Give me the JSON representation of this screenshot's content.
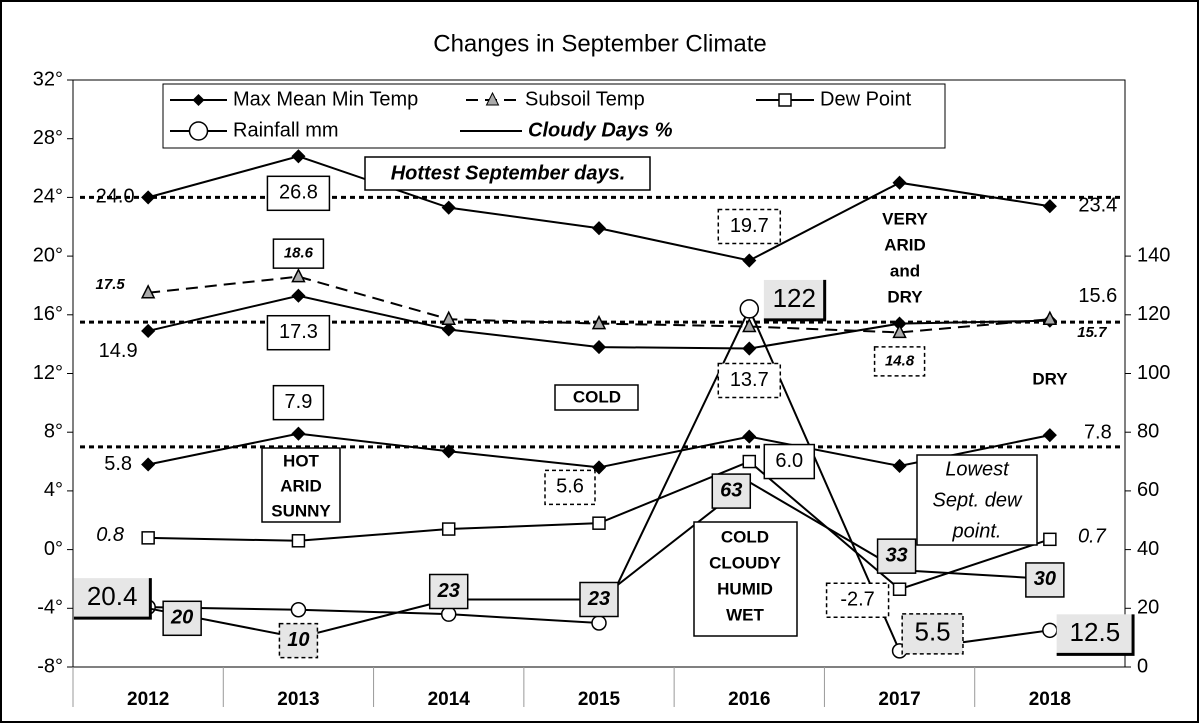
{
  "chart_data": {
    "type": "line",
    "title": "Changes in September Climate",
    "categories": [
      "2012",
      "2013",
      "2014",
      "2015",
      "2016",
      "2017",
      "2018"
    ],
    "ylim": [
      -8,
      32
    ],
    "yticks": [
      {
        "value": -8,
        "label": "-8°"
      },
      {
        "value": -4,
        "label": "-4°"
      },
      {
        "value": 0,
        "label": "0°"
      },
      {
        "value": 4,
        "label": "4°"
      },
      {
        "value": 8,
        "label": "8°"
      },
      {
        "value": 12,
        "label": "12°"
      },
      {
        "value": 16,
        "label": "16°"
      },
      {
        "value": 20,
        "label": "20°"
      },
      {
        "value": 24,
        "label": "24°"
      },
      {
        "value": 28,
        "label": "28°"
      },
      {
        "value": 32,
        "label": "32°"
      }
    ],
    "y2lim": [
      0,
      200
    ],
    "y2ticks": [
      0,
      20,
      40,
      60,
      80,
      100,
      120,
      140
    ],
    "reference_lines": [
      24,
      15.5,
      7
    ],
    "series": [
      {
        "name": "Max Mean Min Temp",
        "color": "#000000",
        "marker": "diamond",
        "values": [
          24.0,
          26.8,
          23.3,
          21.9,
          19.7,
          25.0,
          23.4
        ],
        "value_labels": [
          "24.0",
          "26.8",
          null,
          null,
          "19.7",
          null,
          "23.4"
        ]
      },
      {
        "color": "#000000",
        "marker": "diamond",
        "values": [
          14.9,
          17.3,
          15.0,
          13.8,
          13.7,
          15.4,
          15.6
        ],
        "value_labels": [
          "14.9",
          "17.3",
          null,
          null,
          "13.7",
          null,
          "15.6"
        ]
      },
      {
        "color": "#000000",
        "marker": "diamond",
        "values": [
          5.8,
          7.9,
          6.7,
          5.6,
          7.7,
          5.7,
          7.8
        ],
        "value_labels": [
          "5.8",
          "7.9",
          null,
          "5.6",
          null,
          null,
          "7.8"
        ]
      },
      {
        "name": "Subsoil Temp",
        "color": "#000000",
        "marker": "triangle",
        "line_style": "dashed",
        "values": [
          17.5,
          18.6,
          15.7,
          15.4,
          15.2,
          14.8,
          15.7
        ],
        "value_labels": [
          "17.5",
          "18.6",
          null,
          null,
          null,
          "14.8",
          "15.7"
        ]
      },
      {
        "name": "Dew Point",
        "color": "#000000",
        "marker": "square",
        "values": [
          0.8,
          0.6,
          1.4,
          1.8,
          6.0,
          -2.7,
          0.7
        ],
        "value_labels": [
          "0.8",
          null,
          null,
          null,
          "6.0",
          "-2.7",
          "0.7"
        ]
      },
      {
        "name": "Rainfall mm",
        "color": "#000000",
        "marker": "circle",
        "axis": "y2",
        "values": [
          20.4,
          19.5,
          18,
          15,
          122,
          5.5,
          12.5
        ],
        "value_labels": [
          "20.4",
          null,
          null,
          null,
          "122",
          "5.5",
          "12.5"
        ]
      },
      {
        "name": "Cloudy Days %",
        "color": "#000000",
        "marker": "none",
        "axis": "y2",
        "values": [
          20,
          10,
          23,
          23,
          63,
          33,
          30
        ],
        "value_labels": [
          "20",
          "10",
          "23",
          "23",
          "63",
          "33",
          "30"
        ]
      }
    ],
    "annotations": [
      {
        "lines": [
          "Hottest September days."
        ]
      },
      {
        "lines": [
          "VERY",
          "ARID",
          "and",
          "DRY"
        ]
      },
      {
        "lines": [
          "COLD"
        ]
      },
      {
        "lines": [
          "DRY"
        ]
      },
      {
        "lines": [
          "HOT",
          "ARID",
          "SUNNY"
        ]
      },
      {
        "lines": [
          "COLD",
          "CLOUDY",
          "HUMID",
          "WET"
        ]
      },
      {
        "lines": [
          "Lowest",
          "Sept. dew",
          "point."
        ]
      }
    ]
  }
}
